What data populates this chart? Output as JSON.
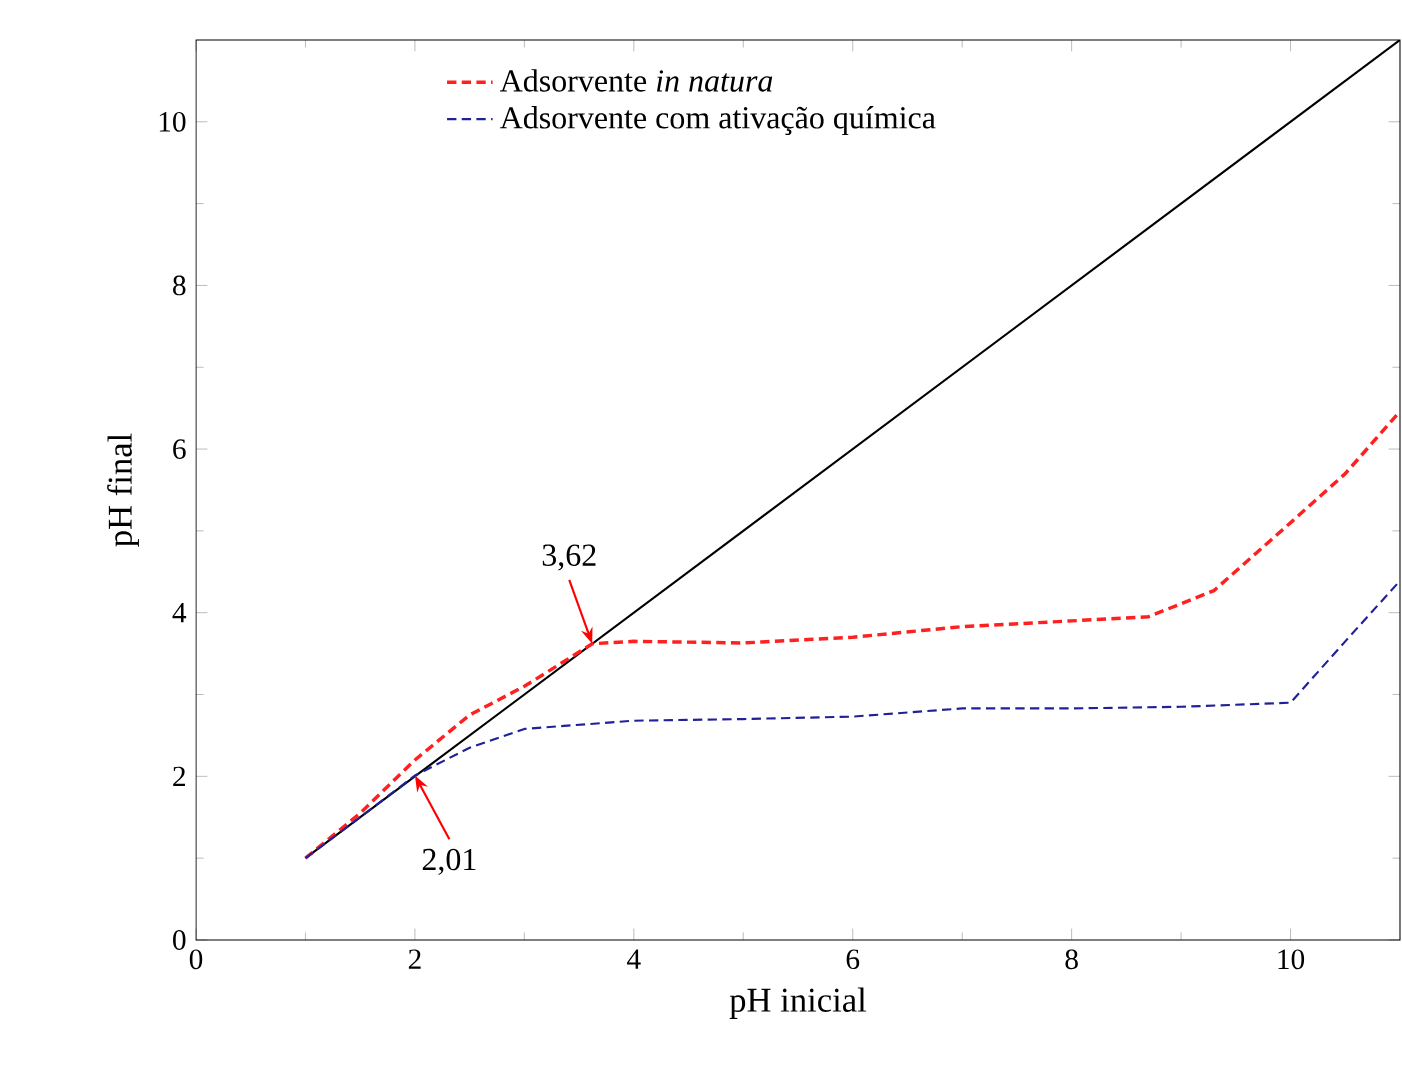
{
  "chart_data": {
    "type": "line",
    "xlabel": "pH inicial",
    "ylabel": "pH final",
    "xlim": [
      0,
      11
    ],
    "ylim": [
      0,
      11
    ],
    "xticks": [
      0,
      2,
      4,
      6,
      8,
      10
    ],
    "yticks": [
      0,
      2,
      4,
      6,
      8,
      10
    ],
    "legend": "top left",
    "grid": false,
    "marker": "none",
    "series": [
      {
        "color": "#000000",
        "line_style": "solid",
        "x": [
          1,
          11
        ],
        "values": [
          1,
          11
        ]
      },
      {
        "name": "Adsorvente *in natura*",
        "color": "#ff2020",
        "line_style": "dashed",
        "x": [
          1,
          1.5,
          2,
          2.5,
          3,
          3.62,
          4,
          5,
          6,
          7,
          8,
          8.7,
          9.3,
          10,
          10.5,
          11
        ],
        "values": [
          1,
          1.55,
          2.2,
          2.75,
          3.1,
          3.62,
          3.65,
          3.63,
          3.7,
          3.83,
          3.9,
          3.95,
          4.27,
          5.1,
          5.7,
          6.46
        ]
      },
      {
        "name": "Adsorvente com ativação química",
        "color": "#20209a",
        "line_style": "dashed",
        "x": [
          1,
          1.5,
          2,
          2.5,
          3,
          4,
          5,
          6,
          7,
          8,
          9,
          10,
          10.5,
          11
        ],
        "values": [
          1,
          1.5,
          2.01,
          2.35,
          2.58,
          2.68,
          2.7,
          2.73,
          2.83,
          2.83,
          2.85,
          2.9,
          3.65,
          4.39
        ]
      }
    ],
    "annotations": [
      {
        "text": "3,62",
        "x": 3.62,
        "y": 3.62
      },
      {
        "text": "2,01",
        "x": 2,
        "y": 2.01
      }
    ]
  }
}
